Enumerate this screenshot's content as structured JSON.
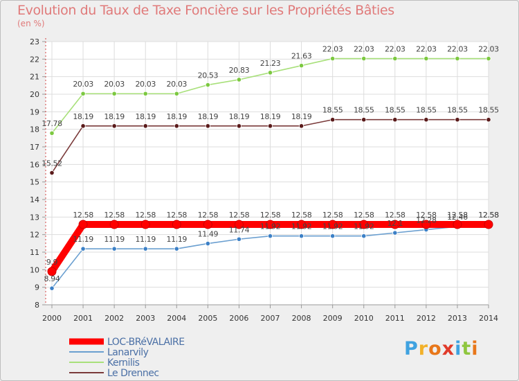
{
  "chart_data": {
    "type": "line",
    "title": "Evolution du Taux de Taxe Foncière sur les Propriétés Bâties",
    "subtitle": "(en %)",
    "xlabel": "",
    "ylabel": "",
    "ylim": [
      8,
      23
    ],
    "yticks": [
      "8",
      "9",
      "10",
      "11",
      "12",
      "13",
      "14",
      "15",
      "16",
      "17",
      "18",
      "19",
      "20",
      "21",
      "22",
      "23"
    ],
    "categories": [
      "2000",
      "2001",
      "2002",
      "2003",
      "2004",
      "2005",
      "2006",
      "2007",
      "2008",
      "2009",
      "2010",
      "2011",
      "2012",
      "2013",
      "2014"
    ],
    "series": [
      {
        "name": "LOC-BRéVALAIRE",
        "color": "#ff0000",
        "marker": "#cc0000",
        "values": [
          9.9,
          12.58,
          12.58,
          12.58,
          12.58,
          12.58,
          12.58,
          12.58,
          12.58,
          12.58,
          12.58,
          12.58,
          12.58,
          12.58,
          12.58
        ],
        "labels": [
          "9.9",
          "12.58",
          "12.58",
          "12.58",
          "12.58",
          "12.58",
          "12.58",
          "12.58",
          "12.58",
          "12.58",
          "12.58",
          "12.58",
          "12.58",
          "12.58",
          "12.58"
        ]
      },
      {
        "name": "Lanarvily",
        "color": "#6a9fd0",
        "marker": "#3c80c6",
        "values": [
          8.94,
          11.19,
          11.19,
          11.19,
          11.19,
          11.49,
          11.74,
          11.92,
          11.92,
          11.92,
          11.92,
          12.1,
          12.28,
          12.46,
          12.58
        ],
        "labels": [
          "8.94",
          "11.19",
          "11.19",
          "11.19",
          "11.19",
          "11.49",
          "11.74",
          "11.92",
          "11.92",
          "11.92",
          "11.92",
          "12.1",
          "12.28",
          "12.46",
          "12.58"
        ]
      },
      {
        "name": "Kernilis",
        "color": "#a8e07a",
        "marker": "#7cc840",
        "values": [
          17.78,
          20.03,
          20.03,
          20.03,
          20.03,
          20.53,
          20.83,
          21.23,
          21.63,
          22.03,
          22.03,
          22.03,
          22.03,
          22.03,
          22.03
        ],
        "labels": [
          "17.78",
          "20.03",
          "20.03",
          "20.03",
          "20.03",
          "20.53",
          "20.83",
          "21.23",
          "21.63",
          "22.03",
          "22.03",
          "22.03",
          "22.03",
          "22.03",
          "22.03"
        ]
      },
      {
        "name": "Le Drennec",
        "color": "#7a3a3a",
        "marker": "#5a1a1a",
        "values": [
          15.52,
          18.19,
          18.19,
          18.19,
          18.19,
          18.19,
          18.19,
          18.19,
          18.19,
          18.55,
          18.55,
          18.55,
          18.55,
          18.55,
          18.55
        ],
        "labels": [
          "15.52",
          "18.19",
          "18.19",
          "18.19",
          "18.19",
          "18.19",
          "18.19",
          "18.19",
          "18.19",
          "18.55",
          "18.55",
          "18.55",
          "18.55",
          "18.55",
          "18.55"
        ]
      }
    ],
    "legend_position": "bottom-left"
  },
  "logo": {
    "letters": [
      "P",
      "r",
      "o",
      "x",
      "i",
      "t",
      "i"
    ],
    "colors": [
      "#3fa2e0",
      "#f2b12a",
      "#e8771a",
      "#e03a2a",
      "#3fa2e0",
      "#8fc63f",
      "#e8771a"
    ]
  }
}
